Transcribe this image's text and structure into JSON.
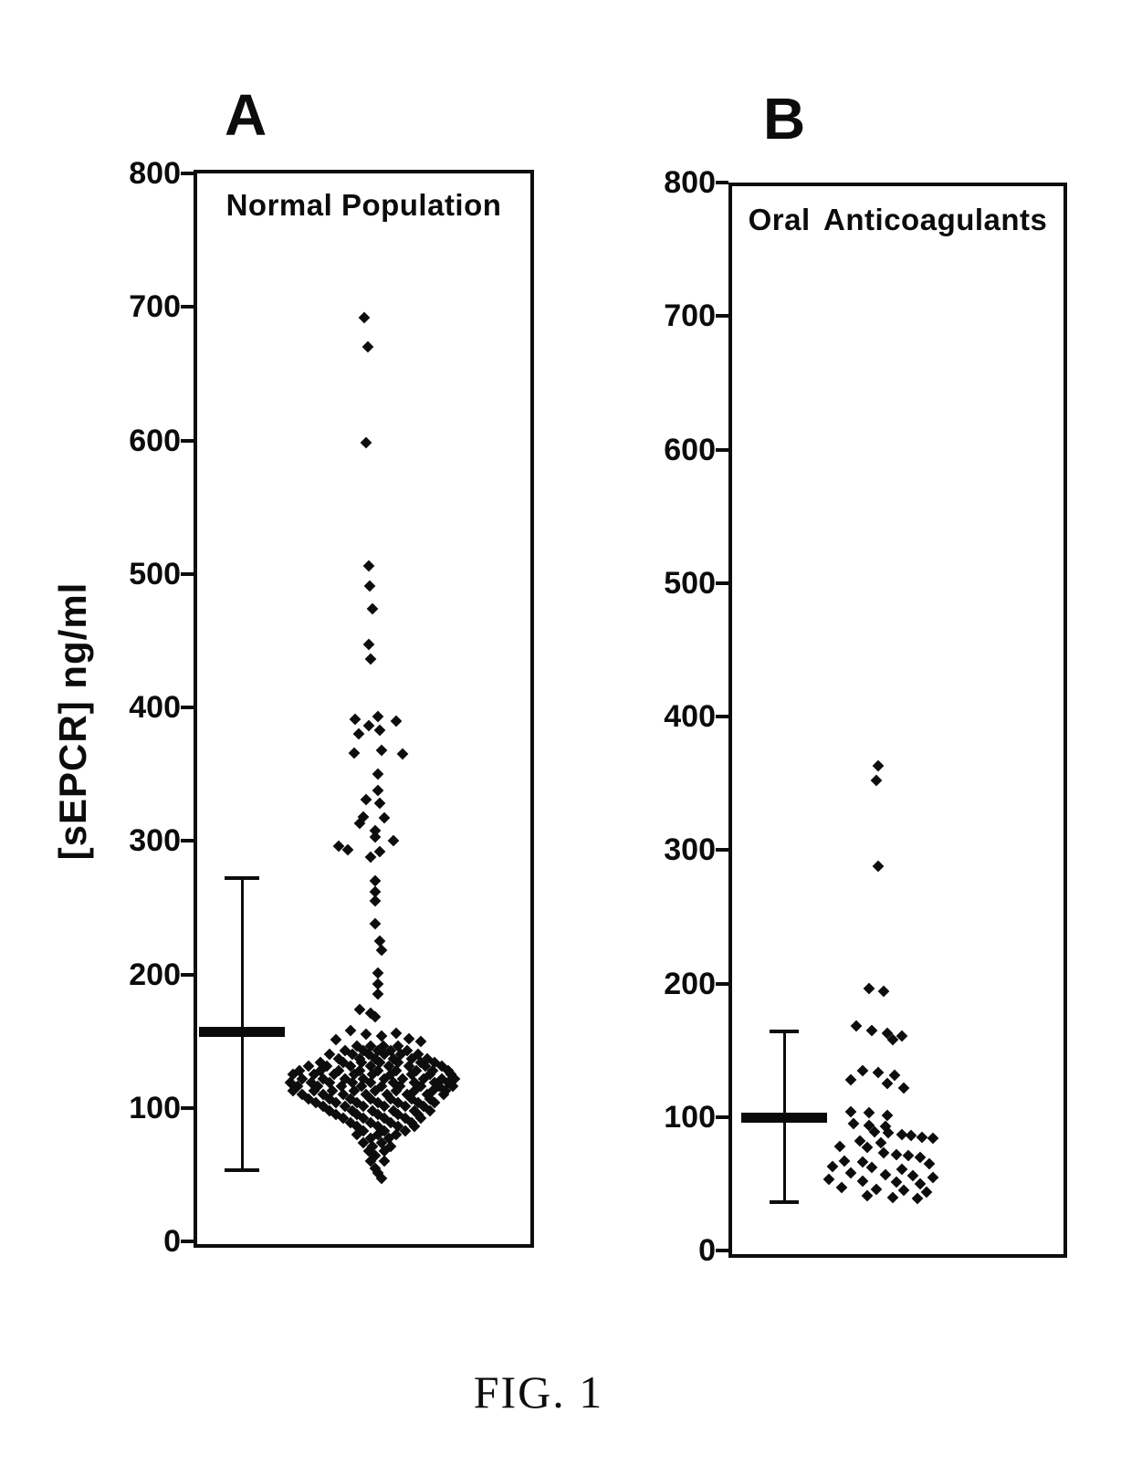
{
  "caption": "FIG. 1",
  "y_axis_label": "[sEPCR] ng/ml",
  "chart_data": [
    {
      "type": "scatter",
      "panel": "A",
      "title": "Normal Population",
      "ylabel": "[sEPCR] ng/ml",
      "ylim": [
        0,
        800
      ],
      "yticks": [
        800,
        700,
        600,
        500,
        400,
        300,
        200,
        100,
        0
      ],
      "grid": false,
      "legend": "none",
      "marker": "filled-diamond",
      "color": "#0d0d0d",
      "error_bar": {
        "mean": 157,
        "upper": 272,
        "lower": 53
      },
      "points_format": "[value_ng_per_ml, x_offset_px_from_column_center]",
      "points": [
        [
          692,
          -7
        ],
        [
          670,
          -3
        ],
        [
          598,
          -5
        ],
        [
          506,
          -2
        ],
        [
          491,
          -1
        ],
        [
          474,
          2
        ],
        [
          447,
          -2
        ],
        [
          436,
          0
        ],
        [
          393,
          8
        ],
        [
          391,
          -17
        ],
        [
          390,
          28
        ],
        [
          386,
          -2
        ],
        [
          383,
          10
        ],
        [
          380,
          -13
        ],
        [
          368,
          12
        ],
        [
          366,
          -18
        ],
        [
          365,
          35
        ],
        [
          350,
          8
        ],
        [
          338,
          8
        ],
        [
          331,
          -5
        ],
        [
          328,
          10
        ],
        [
          318,
          -8
        ],
        [
          317,
          15
        ],
        [
          313,
          -12
        ],
        [
          308,
          5
        ],
        [
          303,
          5
        ],
        [
          300,
          25
        ],
        [
          296,
          -35
        ],
        [
          293,
          -25
        ],
        [
          292,
          10
        ],
        [
          288,
          0
        ],
        [
          270,
          5
        ],
        [
          262,
          5
        ],
        [
          255,
          5
        ],
        [
          238,
          5
        ],
        [
          225,
          10
        ],
        [
          218,
          12
        ],
        [
          201,
          8
        ],
        [
          193,
          8
        ],
        [
          185,
          8
        ],
        [
          174,
          -12
        ],
        [
          171,
          0
        ],
        [
          168,
          5
        ],
        [
          158,
          -22
        ],
        [
          156,
          28
        ],
        [
          155,
          -5
        ],
        [
          154,
          12
        ],
        [
          152,
          42
        ],
        [
          151,
          -38
        ],
        [
          150,
          55
        ],
        [
          146,
          -15
        ],
        [
          146,
          0
        ],
        [
          146,
          14
        ],
        [
          146,
          30
        ],
        [
          143,
          -28
        ],
        [
          143,
          -8
        ],
        [
          143,
          8
        ],
        [
          143,
          22
        ],
        [
          143,
          40
        ],
        [
          140,
          -45
        ],
        [
          140,
          -20
        ],
        [
          140,
          -2
        ],
        [
          140,
          15
        ],
        [
          140,
          33
        ],
        [
          140,
          52
        ],
        [
          137,
          -35
        ],
        [
          137,
          -12
        ],
        [
          137,
          5
        ],
        [
          137,
          25
        ],
        [
          137,
          45
        ],
        [
          137,
          62
        ],
        [
          134,
          -55
        ],
        [
          134,
          -30
        ],
        [
          134,
          -10
        ],
        [
          134,
          10
        ],
        [
          134,
          30
        ],
        [
          134,
          55
        ],
        [
          134,
          70
        ],
        [
          131,
          -68
        ],
        [
          131,
          -48
        ],
        [
          131,
          -22
        ],
        [
          131,
          0
        ],
        [
          131,
          20
        ],
        [
          131,
          42
        ],
        [
          131,
          60
        ],
        [
          131,
          78
        ],
        [
          128,
          -78
        ],
        [
          128,
          -55
        ],
        [
          128,
          -35
        ],
        [
          128,
          -12
        ],
        [
          128,
          8
        ],
        [
          128,
          28
        ],
        [
          128,
          50
        ],
        [
          128,
          68
        ],
        [
          128,
          85
        ],
        [
          125,
          -85
        ],
        [
          125,
          -62
        ],
        [
          125,
          -40
        ],
        [
          125,
          -18
        ],
        [
          125,
          2
        ],
        [
          125,
          22
        ],
        [
          125,
          45
        ],
        [
          125,
          65
        ],
        [
          125,
          88
        ],
        [
          122,
          -75
        ],
        [
          122,
          -52
        ],
        [
          122,
          -28
        ],
        [
          122,
          -8
        ],
        [
          122,
          15
        ],
        [
          122,
          35
        ],
        [
          122,
          58
        ],
        [
          122,
          78
        ],
        [
          122,
          92
        ],
        [
          119,
          -88
        ],
        [
          119,
          -65
        ],
        [
          119,
          -45
        ],
        [
          119,
          -20
        ],
        [
          119,
          0
        ],
        [
          119,
          25
        ],
        [
          119,
          48
        ],
        [
          119,
          70
        ],
        [
          119,
          85
        ],
        [
          116,
          -80
        ],
        [
          116,
          -58
        ],
        [
          116,
          -32
        ],
        [
          116,
          -10
        ],
        [
          116,
          12
        ],
        [
          116,
          32
        ],
        [
          116,
          55
        ],
        [
          116,
          75
        ],
        [
          116,
          90
        ],
        [
          113,
          -85
        ],
        [
          113,
          -62
        ],
        [
          113,
          -42
        ],
        [
          113,
          -18
        ],
        [
          113,
          5
        ],
        [
          113,
          28
        ],
        [
          113,
          48
        ],
        [
          113,
          68
        ],
        [
          113,
          82
        ],
        [
          110,
          -75
        ],
        [
          110,
          -52
        ],
        [
          110,
          -30
        ],
        [
          110,
          -5
        ],
        [
          110,
          18
        ],
        [
          110,
          40
        ],
        [
          110,
          62
        ],
        [
          110,
          80
        ],
        [
          107,
          -68
        ],
        [
          107,
          -45
        ],
        [
          107,
          -22
        ],
        [
          107,
          0
        ],
        [
          107,
          22
        ],
        [
          107,
          45
        ],
        [
          107,
          65
        ],
        [
          104,
          -60
        ],
        [
          104,
          -38
        ],
        [
          104,
          -15
        ],
        [
          104,
          8
        ],
        [
          104,
          30
        ],
        [
          104,
          52
        ],
        [
          104,
          70
        ],
        [
          101,
          -52
        ],
        [
          101,
          -28
        ],
        [
          101,
          -8
        ],
        [
          101,
          15
        ],
        [
          101,
          38
        ],
        [
          101,
          58
        ],
        [
          98,
          -45
        ],
        [
          98,
          -20
        ],
        [
          98,
          2
        ],
        [
          98,
          25
        ],
        [
          98,
          48
        ],
        [
          98,
          65
        ],
        [
          95,
          -38
        ],
        [
          95,
          -15
        ],
        [
          95,
          8
        ],
        [
          95,
          30
        ],
        [
          95,
          52
        ],
        [
          92,
          -30
        ],
        [
          92,
          -8
        ],
        [
          92,
          15
        ],
        [
          92,
          38
        ],
        [
          92,
          55
        ],
        [
          89,
          -22
        ],
        [
          89,
          0
        ],
        [
          89,
          22
        ],
        [
          89,
          45
        ],
        [
          86,
          -15
        ],
        [
          86,
          8
        ],
        [
          86,
          30
        ],
        [
          86,
          48
        ],
        [
          83,
          -8
        ],
        [
          83,
          15
        ],
        [
          83,
          38
        ],
        [
          80,
          -15
        ],
        [
          80,
          8
        ],
        [
          80,
          28
        ],
        [
          77,
          0
        ],
        [
          77,
          20
        ],
        [
          74,
          -8
        ],
        [
          74,
          12
        ],
        [
          71,
          2
        ],
        [
          71,
          22
        ],
        [
          68,
          -2
        ],
        [
          68,
          15
        ],
        [
          64,
          5
        ],
        [
          60,
          0
        ],
        [
          60,
          15
        ],
        [
          55,
          5
        ],
        [
          51,
          8
        ],
        [
          47,
          12
        ]
      ]
    },
    {
      "type": "scatter",
      "panel": "B",
      "title": "Oral Anticoagulants",
      "ylabel": "[sEPCR] ng/ml",
      "ylim": [
        0,
        800
      ],
      "yticks": [
        800,
        700,
        600,
        500,
        400,
        300,
        200,
        100,
        0
      ],
      "grid": false,
      "legend": "none",
      "marker": "filled-diamond",
      "color": "#0d0d0d",
      "error_bar": {
        "mean": 100,
        "upper": 164,
        "lower": 36
      },
      "points_format": "[value_ng_per_ml, x_offset_px_from_column_center]",
      "points": [
        [
          363,
          2
        ],
        [
          352,
          0
        ],
        [
          288,
          2
        ],
        [
          196,
          -8
        ],
        [
          194,
          8
        ],
        [
          168,
          -22
        ],
        [
          165,
          -5
        ],
        [
          163,
          12
        ],
        [
          161,
          28
        ],
        [
          158,
          18
        ],
        [
          135,
          -15
        ],
        [
          133,
          2
        ],
        [
          131,
          20
        ],
        [
          128,
          -28
        ],
        [
          125,
          12
        ],
        [
          122,
          30
        ],
        [
          104,
          -28
        ],
        [
          103,
          -8
        ],
        [
          101,
          12
        ],
        [
          95,
          -25
        ],
        [
          94,
          -8
        ],
        [
          93,
          10
        ],
        [
          89,
          -2
        ],
        [
          88,
          13
        ],
        [
          87,
          28
        ],
        [
          86,
          38
        ],
        [
          85,
          50
        ],
        [
          84,
          62
        ],
        [
          82,
          -18
        ],
        [
          81,
          5
        ],
        [
          78,
          -40
        ],
        [
          77,
          -10
        ],
        [
          73,
          8
        ],
        [
          72,
          22
        ],
        [
          71,
          35
        ],
        [
          70,
          48
        ],
        [
          67,
          -35
        ],
        [
          66,
          -15
        ],
        [
          65,
          58
        ],
        [
          63,
          -48
        ],
        [
          62,
          -5
        ],
        [
          61,
          28
        ],
        [
          58,
          -28
        ],
        [
          57,
          10
        ],
        [
          56,
          40
        ],
        [
          55,
          62
        ],
        [
          53,
          -52
        ],
        [
          52,
          -15
        ],
        [
          51,
          22
        ],
        [
          50,
          48
        ],
        [
          47,
          -38
        ],
        [
          46,
          0
        ],
        [
          45,
          30
        ],
        [
          44,
          55
        ],
        [
          41,
          -10
        ],
        [
          40,
          18
        ],
        [
          39,
          45
        ]
      ]
    }
  ]
}
